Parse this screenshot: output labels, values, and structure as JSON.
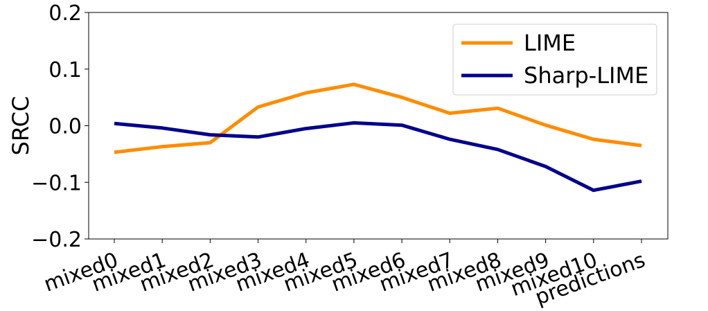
{
  "chart_data": {
    "type": "line",
    "title": "",
    "xlabel": "",
    "ylabel": "SRCC",
    "ylim": [
      -0.2,
      0.2
    ],
    "yticks": [
      -0.2,
      -0.1,
      0.0,
      0.1,
      0.2
    ],
    "ytick_labels": [
      "−0.2",
      "−0.1",
      "0.0",
      "0.1",
      "0.2"
    ],
    "grid": false,
    "legend_position": "top-right",
    "categories": [
      "mixed0",
      "mixed1",
      "mixed2",
      "mixed3",
      "mixed4",
      "mixed5",
      "mixed6",
      "mixed7",
      "mixed8",
      "mixed9",
      "mixed10",
      "predictions"
    ],
    "series": [
      {
        "name": "LIME",
        "color": "#ff8c00",
        "values": [
          -0.047,
          -0.037,
          -0.03,
          0.033,
          0.058,
          0.073,
          0.05,
          0.022,
          0.031,
          0.001,
          -0.024,
          -0.035
        ]
      },
      {
        "name": "Sharp-LIME",
        "color": "#00008b",
        "values": [
          0.004,
          -0.004,
          -0.016,
          -0.02,
          -0.005,
          0.005,
          0.001,
          -0.024,
          -0.042,
          -0.072,
          -0.114,
          -0.098
        ]
      }
    ]
  }
}
